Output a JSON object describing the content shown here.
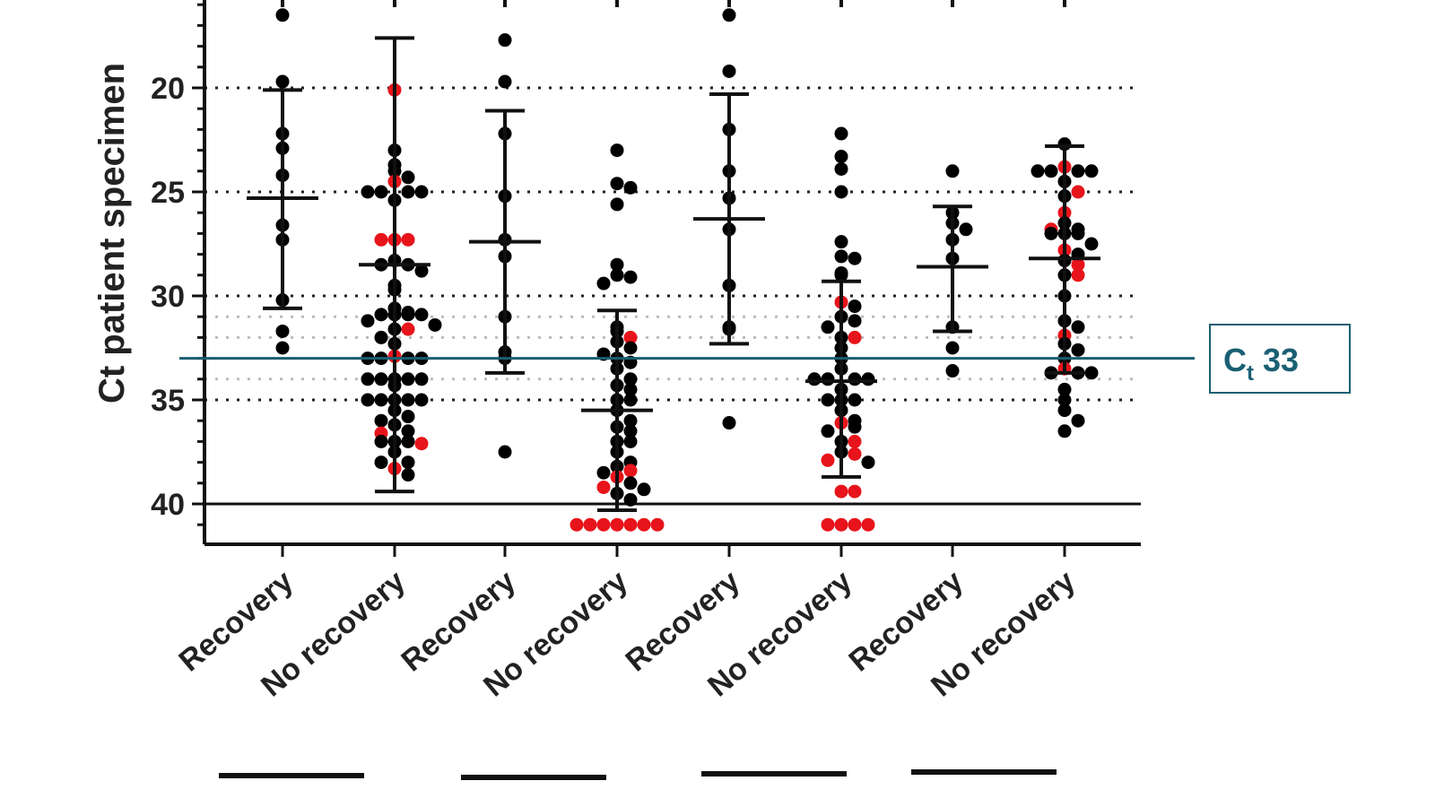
{
  "chart_data": {
    "type": "scatter",
    "subtype": "dot-plot-with-mean-and-sd",
    "ylabel": "Ct patient specimen",
    "y_inverted": true,
    "ylim": [
      15.8,
      42
    ],
    "yticks": [
      20,
      25,
      30,
      35,
      40
    ],
    "grid": {
      "major_dotted": [
        20,
        25,
        30,
        35
      ],
      "minor_dotted": [
        31,
        32,
        34
      ],
      "solid_lines": [
        40
      ]
    },
    "threshold": {
      "value": 33,
      "label_main": "C",
      "label_sub": "t",
      "label_value": "33",
      "color": "#1a5f73"
    },
    "colors": {
      "default": "#000000",
      "highlight": "#e8141b"
    },
    "categories": [
      "Recovery",
      "No recovery",
      "Recovery",
      "No recovery",
      "Recovery",
      "No recovery",
      "Recovery",
      "No recovery"
    ],
    "groups": [
      {
        "mean": 25.3,
        "sd_low": 20.1,
        "sd_high": 30.6,
        "black": [
          16.5,
          19.7,
          22.2,
          22.9,
          24.2,
          26.6,
          27.3,
          30.2,
          31.7,
          32.5
        ],
        "red": []
      },
      {
        "mean": 28.5,
        "sd_low": 17.6,
        "sd_high": 39.4,
        "black": [
          23.0,
          23.7,
          24.0,
          24.3,
          25.0,
          25.0,
          25.0,
          25.0,
          25.4,
          28.3,
          28.5,
          28.5,
          28.8,
          29.5,
          29.7,
          30.6,
          30.8,
          30.9,
          30.9,
          30.9,
          30.9,
          31.2,
          31.4,
          31.6,
          32.0,
          32.3,
          33.0,
          33.0,
          33.0,
          33.0,
          34.0,
          34.0,
          34.0,
          34.0,
          34.0,
          34.3,
          35.0,
          35.0,
          35.0,
          35.0,
          35.0,
          35.5,
          35.8,
          36.0,
          36.2,
          36.5,
          37.0,
          37.0,
          37.0,
          37.5,
          38.0,
          38.0,
          38.6
        ],
        "red": [
          20.1,
          24.5,
          27.3,
          27.3,
          27.3,
          31.6,
          32.9,
          36.6,
          37.1,
          38.3
        ]
      },
      {
        "mean": 27.4,
        "sd_low": 21.1,
        "sd_high": 33.7,
        "black": [
          17.7,
          19.7,
          22.2,
          25.2,
          27.3,
          28.1,
          31.0,
          32.7,
          33.0,
          37.5
        ],
        "red": []
      },
      {
        "mean": 35.5,
        "sd_low": 30.7,
        "sd_high": 40.3,
        "black": [
          23.0,
          24.6,
          24.8,
          25.6,
          28.5,
          29.0,
          29.1,
          29.4,
          31.5,
          31.7,
          32.2,
          32.5,
          32.8,
          33.0,
          33.2,
          33.5,
          34.0,
          34.3,
          34.5,
          35.0,
          35.0,
          35.5,
          36.0,
          36.3,
          36.5,
          37.0,
          37.0,
          37.5,
          38.0,
          38.2,
          38.5,
          39.0,
          39.3,
          39.5,
          39.8
        ],
        "red": [
          32.0,
          38.4,
          38.7,
          39.2,
          41.0,
          41.0,
          41.0,
          41.0,
          41.0,
          41.0,
          41.0
        ]
      },
      {
        "mean": 26.3,
        "sd_low": 20.3,
        "sd_high": 32.3,
        "black": [
          16.5,
          19.2,
          22.0,
          24.0,
          25.3,
          26.8,
          29.5,
          31.5,
          31.6,
          36.1
        ],
        "red": []
      },
      {
        "mean": 34.1,
        "sd_low": 29.3,
        "sd_high": 38.7,
        "black": [
          22.2,
          23.3,
          23.9,
          25.0,
          27.4,
          28.1,
          28.2,
          28.9,
          29.0,
          30.5,
          31.0,
          31.2,
          31.5,
          32.0,
          32.5,
          33.0,
          33.5,
          34.0,
          34.0,
          34.0,
          34.0,
          34.5,
          35.0,
          35.0,
          35.0,
          35.5,
          36.0,
          36.3,
          36.5,
          37.0,
          37.5,
          38.0
        ],
        "red": [
          30.3,
          32.0,
          36.1,
          37.0,
          37.6,
          37.9,
          39.4,
          39.4,
          41.0,
          41.0,
          41.0,
          41.0
        ]
      },
      {
        "mean": 28.6,
        "sd_low": 25.7,
        "sd_high": 31.7,
        "black": [
          24.0,
          26.0,
          26.5,
          26.8,
          27.3,
          28.2,
          31.5,
          32.5,
          33.6
        ],
        "red": []
      },
      {
        "mean": 28.2,
        "sd_low": 22.8,
        "sd_high": 33.7,
        "black": [
          22.7,
          24.0,
          24.0,
          24.0,
          24.0,
          24.5,
          25.2,
          26.5,
          26.8,
          27.0,
          27.0,
          27.0,
          27.5,
          28.0,
          28.3,
          29.0,
          30.0,
          31.2,
          31.5,
          32.3,
          32.6,
          33.0,
          33.7,
          33.7,
          33.7,
          34.5,
          35.0,
          35.5,
          36.0,
          36.5
        ],
        "red": [
          23.8,
          25.0,
          26.0,
          26.8,
          27.8,
          28.5,
          29.0,
          31.9,
          33.5
        ]
      }
    ]
  }
}
